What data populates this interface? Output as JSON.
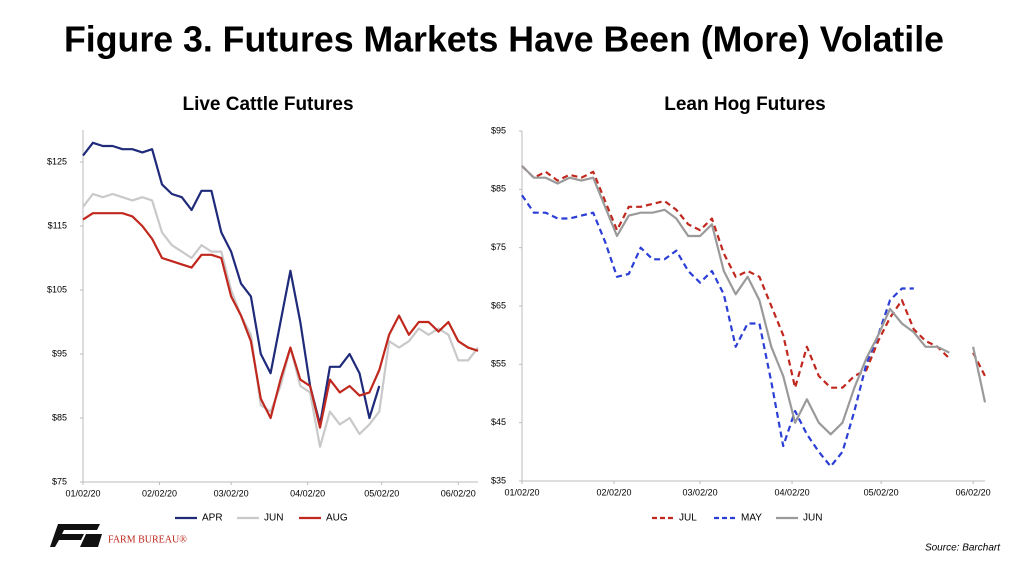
{
  "title": "Figure 3. Futures Markets Have Been (More) Volatile",
  "source": "Source: Barchart",
  "logo": "FARM BUREAU®",
  "chart_data": [
    {
      "type": "line",
      "title": "Live Cattle Futures",
      "legend": "bottom",
      "grid": false,
      "x": [
        "01/02/20",
        "01/06/20",
        "01/10/20",
        "01/14/20",
        "01/18/20",
        "01/22/20",
        "01/26/20",
        "01/30/20",
        "02/03/20",
        "02/07/20",
        "02/11/20",
        "02/15/20",
        "02/19/20",
        "02/23/20",
        "02/27/20",
        "03/02/20",
        "03/06/20",
        "03/10/20",
        "03/14/20",
        "03/18/20",
        "03/22/20",
        "03/26/20",
        "03/30/20",
        "04/03/20",
        "04/07/20",
        "04/11/20",
        "04/15/20",
        "04/19/20",
        "04/23/20",
        "04/27/20",
        "05/01/20",
        "05/05/20",
        "05/09/20",
        "05/13/20",
        "05/17/20",
        "05/21/20",
        "05/25/20",
        "05/29/20",
        "06/02/20",
        "06/06/20",
        "06/10/20"
      ],
      "xlim": [
        "01/02/20",
        "06/10/20"
      ],
      "xticks": [
        "01/02/20",
        "02/02/20",
        "03/02/20",
        "04/02/20",
        "05/02/20",
        "06/02/20"
      ],
      "ylim": [
        75,
        130
      ],
      "yticks": [
        {
          "value": 75,
          "label": "$75"
        },
        {
          "value": 85,
          "label": "$85"
        },
        {
          "value": 95,
          "label": "$95"
        },
        {
          "value": 105,
          "label": "$105"
        },
        {
          "value": 115,
          "label": "$115"
        },
        {
          "value": 125,
          "label": "$125"
        }
      ],
      "series": [
        {
          "name": "APR",
          "color": "#1f2a7a",
          "style": "solid",
          "values": [
            126,
            128,
            127.5,
            127.5,
            127,
            127,
            126.5,
            127,
            121.5,
            120,
            119.5,
            117.5,
            120.5,
            120.5,
            114,
            111,
            106,
            104,
            95,
            92,
            100,
            108,
            100,
            90,
            84,
            93,
            93,
            95,
            92,
            85,
            90,
            null,
            null,
            null,
            null,
            null,
            null,
            null,
            null,
            null,
            null
          ]
        },
        {
          "name": "JUN",
          "color": "#c9c9c9",
          "style": "solid",
          "values": [
            118,
            120,
            119.5,
            120,
            119.5,
            119,
            119.5,
            119,
            114,
            112,
            111,
            110,
            112,
            111,
            111,
            105,
            101,
            98,
            87,
            86,
            90,
            96,
            90,
            89,
            80.5,
            86,
            84,
            85,
            82.5,
            84,
            86,
            97,
            96,
            97,
            99,
            98,
            99,
            98,
            94,
            94,
            96
          ]
        },
        {
          "name": "AUG",
          "color": "#c0281e",
          "style": "solid",
          "values": [
            116,
            117,
            117,
            117,
            117,
            116.5,
            115,
            113,
            110,
            109.5,
            109,
            108.5,
            110.5,
            110.5,
            110,
            104,
            101,
            97,
            88,
            85,
            91,
            96,
            91,
            90,
            83.5,
            91,
            89,
            90,
            88.5,
            89,
            92.5,
            98,
            101,
            98,
            100,
            100,
            98.5,
            100,
            97,
            96,
            95.5
          ]
        }
      ]
    },
    {
      "type": "line",
      "title": "Lean Hog Futures",
      "legend": "bottom",
      "grid": false,
      "x": [
        "01/02/20",
        "01/06/20",
        "01/10/20",
        "01/14/20",
        "01/18/20",
        "01/22/20",
        "01/26/20",
        "01/30/20",
        "02/03/20",
        "02/07/20",
        "02/11/20",
        "02/15/20",
        "02/19/20",
        "02/23/20",
        "02/27/20",
        "03/02/20",
        "03/06/20",
        "03/10/20",
        "03/14/20",
        "03/18/20",
        "03/22/20",
        "03/26/20",
        "03/30/20",
        "04/03/20",
        "04/07/20",
        "04/11/20",
        "04/15/20",
        "04/19/20",
        "04/23/20",
        "04/27/20",
        "05/01/20",
        "05/05/20",
        "05/09/20",
        "05/13/20",
        "05/17/20",
        "05/21/20",
        "05/25/20",
        "05/29/20",
        "06/02/20",
        "06/06/20"
      ],
      "xlim": [
        "01/02/20",
        "06/06/20"
      ],
      "xticks": [
        "01/02/20",
        "02/02/20",
        "03/02/20",
        "04/02/20",
        "05/02/20",
        "06/02/20"
      ],
      "ylim": [
        35,
        95
      ],
      "yticks": [
        {
          "value": 35,
          "label": "$35"
        },
        {
          "value": 45,
          "label": "$45"
        },
        {
          "value": 55,
          "label": "$55"
        },
        {
          "value": 65,
          "label": "$65"
        },
        {
          "value": 75,
          "label": "$75"
        },
        {
          "value": 85,
          "label": "$85"
        },
        {
          "value": 95,
          "label": "$95"
        }
      ],
      "series": [
        {
          "name": "JUL",
          "color": "#c0281e",
          "style": "dashed",
          "values": [
            89,
            87,
            88,
            86.5,
            87.5,
            87,
            88,
            83,
            78,
            82,
            82,
            82.5,
            83,
            81.5,
            79,
            78,
            80,
            74,
            70,
            71,
            70,
            65,
            60,
            51,
            58,
            53,
            51,
            51,
            53,
            54,
            59,
            63,
            66,
            61,
            59,
            58,
            56,
            null,
            57,
            53
          ]
        },
        {
          "name": "MAY",
          "color": "#2b3fd6",
          "style": "dashed",
          "values": [
            84,
            81,
            81,
            80,
            80,
            80.5,
            81,
            76,
            70,
            70.5,
            75,
            73,
            73,
            74.5,
            71,
            69,
            71,
            67,
            58,
            62,
            62,
            52,
            41,
            47,
            43,
            40,
            37.5,
            40,
            47,
            55,
            60,
            66,
            68,
            68,
            null,
            null,
            null,
            null,
            null,
            null
          ]
        },
        {
          "name": "JUN",
          "color": "#9a9a9a",
          "style": "solid",
          "values": [
            89,
            87,
            87,
            86,
            87,
            86.5,
            87,
            82,
            77,
            80.5,
            81,
            81,
            81.5,
            80,
            77,
            77,
            79,
            71,
            67,
            70,
            66,
            58,
            53,
            45,
            49,
            45,
            43,
            45,
            51,
            56,
            60,
            64.5,
            62,
            60.5,
            58,
            58,
            57,
            null,
            58,
            48.5
          ]
        }
      ]
    }
  ]
}
